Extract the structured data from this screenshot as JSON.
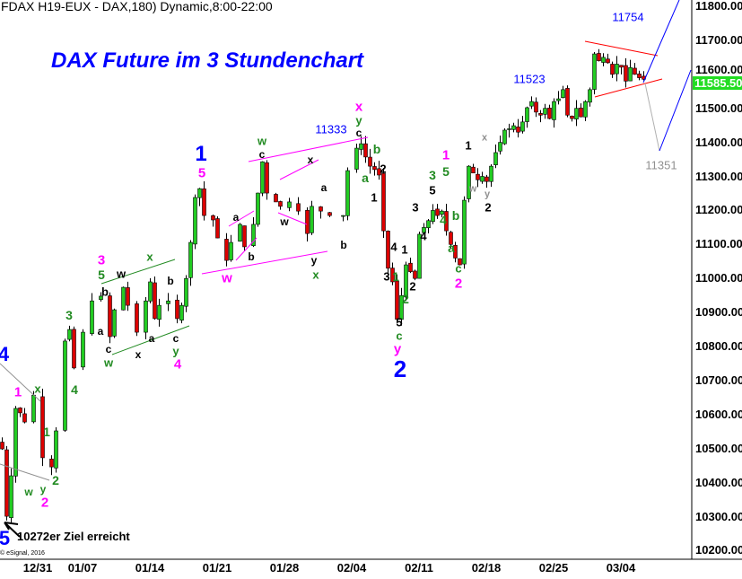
{
  "header": {
    "symbol": "FDAX H19-EUX - DAX,180) Dynamic,8:00-22:00"
  },
  "title": "DAX Future im 3 Stundenchart",
  "note": "10272er Ziel erreicht",
  "copyright": "© eSignal, 2016",
  "last_price": "11585.50",
  "colors": {
    "up": "#22cc22",
    "down": "#dd0000",
    "blue": "#0000ff",
    "magenta": "#ff00ff",
    "green": "#228b22",
    "black": "#000000",
    "gray": "#909090",
    "red": "#ff0000"
  },
  "chart_data": {
    "type": "candlestick",
    "title": "DAX Future im 3 Stundenchart",
    "ylim": [
      10200,
      11800
    ],
    "yticks": [
      "11800.00",
      "11700.00",
      "11600.00",
      "11500.00",
      "11400.00",
      "11300.00",
      "11200.00",
      "11100.00",
      "11000.00",
      "10900.00",
      "10800.00",
      "10700.00",
      "10600.00",
      "10500.00",
      "10400.00",
      "10300.00",
      "10200.00"
    ],
    "xticks": [
      {
        "label": "12/31",
        "bar": 8
      },
      {
        "label": "01/07",
        "bar": 18
      },
      {
        "label": "01/14",
        "bar": 33
      },
      {
        "label": "01/21",
        "bar": 48
      },
      {
        "label": "01/28",
        "bar": 63
      },
      {
        "label": "02/04",
        "bar": 78
      },
      {
        "label": "02/11",
        "bar": 93
      },
      {
        "label": "02/18",
        "bar": 108
      },
      {
        "label": "02/25",
        "bar": 123
      },
      {
        "label": "03/04",
        "bar": 138
      }
    ],
    "close_path": [
      [
        0,
        10499
      ],
      [
        1,
        10301
      ],
      [
        2,
        10420
      ],
      [
        3,
        10618
      ],
      [
        4,
        10605
      ],
      [
        5,
        10578
      ],
      [
        7,
        10657
      ],
      [
        9,
        10473
      ],
      [
        11,
        10446
      ],
      [
        12,
        10552
      ],
      [
        14,
        10816
      ],
      [
        15,
        10850
      ],
      [
        16,
        10737
      ],
      [
        18,
        10842
      ],
      [
        20,
        10934
      ],
      [
        22,
        10948
      ],
      [
        24,
        10829
      ],
      [
        25,
        10908
      ],
      [
        27,
        10974
      ],
      [
        28,
        10921
      ],
      [
        30,
        10842
      ],
      [
        32,
        10934
      ],
      [
        33,
        10990
      ],
      [
        34,
        10882
      ],
      [
        35,
        10921
      ],
      [
        37,
        10934
      ],
      [
        39,
        10882
      ],
      [
        40,
        10921
      ],
      [
        41,
        11000
      ],
      [
        42,
        11106
      ],
      [
        43,
        11238
      ],
      [
        44,
        11264
      ],
      [
        45,
        11185
      ],
      [
        47,
        11172
      ],
      [
        48,
        11119
      ],
      [
        50,
        11053
      ],
      [
        51,
        11106
      ],
      [
        53,
        11159
      ],
      [
        54,
        11093
      ],
      [
        56,
        11159
      ],
      [
        57,
        11251
      ],
      [
        58,
        11343
      ],
      [
        59,
        11251
      ],
      [
        61,
        11225
      ],
      [
        62,
        11212
      ],
      [
        64,
        11225
      ],
      [
        66,
        11198
      ],
      [
        68,
        11132
      ],
      [
        69,
        11212
      ],
      [
        71,
        11198
      ],
      [
        73,
        11185
      ],
      [
        76,
        11185
      ],
      [
        77,
        11317
      ],
      [
        79,
        11383
      ],
      [
        80,
        11396
      ],
      [
        81,
        11357
      ],
      [
        82,
        11330
      ],
      [
        83,
        11320
      ],
      [
        84,
        11304
      ],
      [
        85,
        11140
      ],
      [
        86,
        11030
      ],
      [
        87,
        10990
      ],
      [
        88,
        10880
      ],
      [
        89,
        10950
      ],
      [
        90,
        11040
      ],
      [
        91,
        11020
      ],
      [
        92,
        11000
      ],
      [
        93,
        11130
      ],
      [
        94,
        11150
      ],
      [
        95,
        11170
      ],
      [
        96,
        11200
      ],
      [
        97,
        11185
      ],
      [
        98,
        11198
      ],
      [
        99,
        11140
      ],
      [
        100,
        11100
      ],
      [
        101,
        11060
      ],
      [
        102,
        11040
      ],
      [
        103,
        11230
      ],
      [
        104,
        11330
      ],
      [
        105,
        11310
      ],
      [
        106,
        11290
      ],
      [
        107,
        11300
      ],
      [
        108,
        11285
      ],
      [
        109,
        11330
      ],
      [
        110,
        11370
      ],
      [
        111,
        11400
      ],
      [
        112,
        11436
      ],
      [
        113,
        11440
      ],
      [
        114,
        11449
      ],
      [
        115,
        11430
      ],
      [
        116,
        11460
      ],
      [
        117,
        11502
      ],
      [
        118,
        11520
      ],
      [
        119,
        11489
      ],
      [
        120,
        11480
      ],
      [
        121,
        11500
      ],
      [
        122,
        11470
      ],
      [
        123,
        11520
      ],
      [
        124,
        11528
      ],
      [
        125,
        11555
      ],
      [
        126,
        11480
      ],
      [
        127,
        11470
      ],
      [
        128,
        11500
      ],
      [
        129,
        11475
      ],
      [
        130,
        11520
      ],
      [
        131,
        11555
      ],
      [
        132,
        11660
      ],
      [
        133,
        11640
      ],
      [
        134,
        11650
      ],
      [
        135,
        11634
      ],
      [
        136,
        11600
      ],
      [
        137,
        11630
      ],
      [
        138,
        11621
      ],
      [
        139,
        11580
      ],
      [
        140,
        11620
      ],
      [
        141,
        11600
      ],
      [
        142,
        11590
      ],
      [
        143,
        11585.5
      ]
    ],
    "price_targets": [
      "11333",
      "11523",
      "11754",
      "11351"
    ],
    "annotations": [
      {
        "t": "4",
        "c": "blue"
      },
      {
        "t": "5",
        "c": "blue"
      },
      {
        "t": "1",
        "c": "blue"
      },
      {
        "t": "2",
        "c": "blue"
      },
      {
        "t": "1",
        "c": "magenta"
      },
      {
        "t": "2",
        "c": "magenta"
      },
      {
        "t": "3",
        "c": "magenta"
      },
      {
        "t": "4",
        "c": "magenta"
      },
      {
        "t": "5",
        "c": "magenta"
      },
      {
        "t": "w",
        "c": "magenta"
      },
      {
        "t": "1",
        "c": "magenta"
      },
      {
        "t": "2",
        "c": "magenta"
      },
      {
        "t": "x",
        "c": "magenta"
      },
      {
        "t": "y",
        "c": "magenta"
      },
      {
        "t": "x",
        "c": "green"
      },
      {
        "t": "w",
        "c": "green"
      },
      {
        "t": "y",
        "c": "green"
      },
      {
        "t": "1",
        "c": "green"
      },
      {
        "t": "2",
        "c": "green"
      },
      {
        "t": "3",
        "c": "green"
      },
      {
        "t": "4",
        "c": "green"
      },
      {
        "t": "5",
        "c": "green"
      },
      {
        "t": "x",
        "c": "green"
      },
      {
        "t": "w",
        "c": "green"
      },
      {
        "t": "y",
        "c": "green"
      },
      {
        "t": "w",
        "c": "green"
      },
      {
        "t": "x",
        "c": "green"
      },
      {
        "t": "y",
        "c": "green"
      },
      {
        "t": "b",
        "c": "green"
      },
      {
        "t": "a",
        "c": "green"
      },
      {
        "t": "1",
        "c": "green"
      },
      {
        "t": "2",
        "c": "green"
      },
      {
        "t": "c",
        "c": "green"
      },
      {
        "t": "3",
        "c": "green"
      },
      {
        "t": "5",
        "c": "green"
      },
      {
        "t": "4",
        "c": "green"
      },
      {
        "t": "b",
        "c": "green"
      },
      {
        "t": "a",
        "c": "green"
      },
      {
        "t": "c",
        "c": "green"
      },
      {
        "t": "b",
        "c": "black"
      },
      {
        "t": "w",
        "c": "black"
      },
      {
        "t": "a",
        "c": "black"
      },
      {
        "t": "c",
        "c": "black"
      },
      {
        "t": "x",
        "c": "black"
      },
      {
        "t": "a",
        "c": "black"
      },
      {
        "t": "b",
        "c": "black"
      },
      {
        "t": "c",
        "c": "black"
      },
      {
        "t": "a",
        "c": "black"
      },
      {
        "t": "b",
        "c": "black"
      },
      {
        "t": "c",
        "c": "black"
      },
      {
        "t": "x",
        "c": "black"
      },
      {
        "t": "w",
        "c": "black"
      },
      {
        "t": "a",
        "c": "black"
      },
      {
        "t": "b",
        "c": "black"
      },
      {
        "t": "y",
        "c": "black"
      },
      {
        "t": "c",
        "c": "black"
      },
      {
        "t": "2",
        "c": "black"
      },
      {
        "t": "1",
        "c": "black"
      },
      {
        "t": "4",
        "c": "black"
      },
      {
        "t": "3",
        "c": "black"
      },
      {
        "t": "1",
        "c": "black"
      },
      {
        "t": "2",
        "c": "black"
      },
      {
        "t": "5",
        "c": "black"
      },
      {
        "t": "3",
        "c": "black"
      },
      {
        "t": "4",
        "c": "black"
      },
      {
        "t": "5",
        "c": "black"
      },
      {
        "t": "1",
        "c": "black"
      },
      {
        "t": "2",
        "c": "black"
      },
      {
        "t": "w",
        "c": "gray"
      },
      {
        "t": "x",
        "c": "gray"
      },
      {
        "t": "y",
        "c": "gray"
      }
    ]
  }
}
